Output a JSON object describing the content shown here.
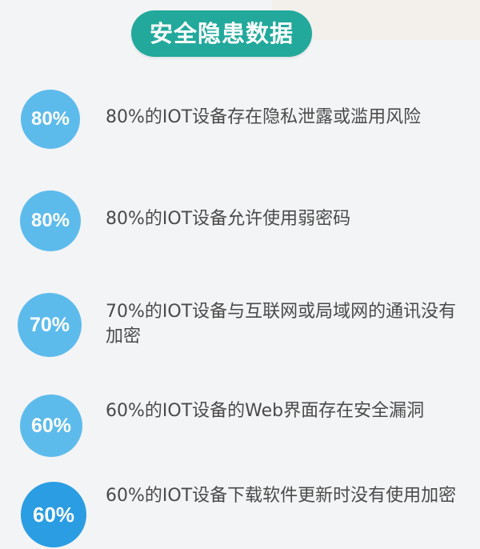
{
  "title": "安全隐患数据",
  "colors": {
    "title_bg": "#22a99c",
    "badge_light": "#5dbbec",
    "badge_dark": "#2a9de3",
    "text": "#4a4a4a",
    "background": "#f3f4f6"
  },
  "items": [
    {
      "percent": "80%",
      "text": "80%的IOT设备存在隐私泄露或滥用风险"
    },
    {
      "percent": "80%",
      "text": "80%的IOT设备允许使用弱密码"
    },
    {
      "percent": "70%",
      "text": "70%的IOT设备与互联网或局域网的通讯没有加密"
    },
    {
      "percent": "60%",
      "text": "60%的IOT设备的Web界面存在安全漏洞"
    },
    {
      "percent": "60%",
      "text": "60%的IOT设备下载软件更新时没有使用加密"
    }
  ]
}
